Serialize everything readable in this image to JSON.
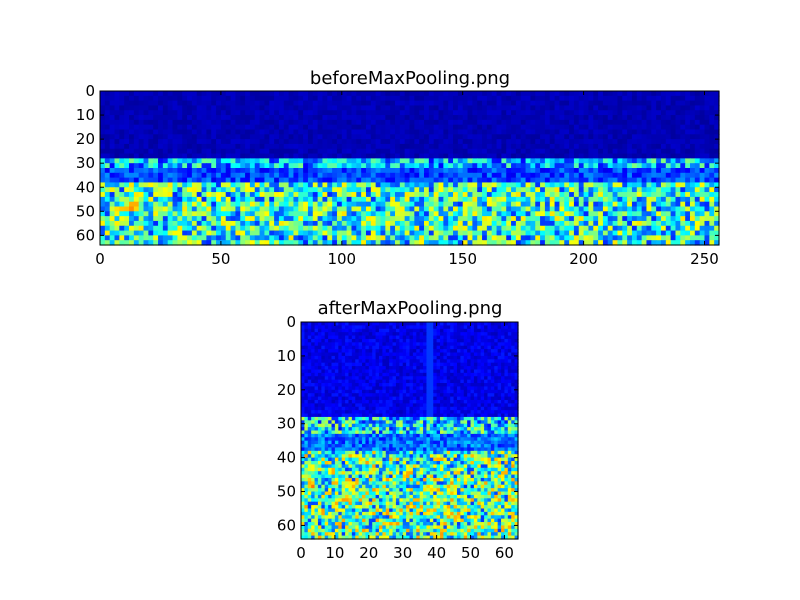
{
  "chart_data": [
    {
      "type": "heatmap",
      "title": "beforeMaxPooling.png",
      "xlabel": "",
      "ylabel": "",
      "x_range": [
        0,
        256
      ],
      "y_range": [
        0,
        64
      ],
      "y_inverted": true,
      "colormap": "jet",
      "xticks": [
        0,
        50,
        100,
        150,
        200,
        250
      ],
      "yticks": [
        0,
        10,
        20,
        30,
        40,
        50,
        60
      ],
      "grid": false,
      "summary_rows": [
        {
          "y_range": [
            0,
            28
          ],
          "level": 0.05
        },
        {
          "y_range": [
            28,
            33
          ],
          "level": 0.35
        },
        {
          "y_range": [
            33,
            38
          ],
          "level": 0.18
        },
        {
          "y_range": [
            38,
            64
          ],
          "level": 0.45
        }
      ],
      "hotspots": [
        {
          "x": 14,
          "y": 48,
          "level": 0.95
        },
        {
          "x": 10,
          "y": 49,
          "level": 0.85
        },
        {
          "x": 16,
          "y": 44,
          "level": 0.8
        },
        {
          "x": 27,
          "y": 49,
          "level": 0.7
        },
        {
          "x": 53,
          "y": 48,
          "level": 0.7
        },
        {
          "x": 68,
          "y": 49,
          "level": 0.65
        },
        {
          "x": 155,
          "y": 50,
          "level": 0.75
        },
        {
          "x": 185,
          "y": 58,
          "level": 0.6
        },
        {
          "x": 215,
          "y": 59,
          "level": 0.55
        }
      ]
    },
    {
      "type": "heatmap",
      "title": "afterMaxPooling.png",
      "xlabel": "",
      "ylabel": "",
      "x_range": [
        0,
        64
      ],
      "y_range": [
        0,
        64
      ],
      "y_inverted": true,
      "colormap": "jet",
      "xticks": [
        0,
        10,
        20,
        30,
        40,
        50,
        60
      ],
      "yticks": [
        0,
        10,
        20,
        30,
        40,
        50,
        60
      ],
      "grid": false,
      "summary_rows": [
        {
          "y_range": [
            0,
            28
          ],
          "level": 0.1
        },
        {
          "y_range": [
            28,
            33
          ],
          "level": 0.4
        },
        {
          "y_range": [
            33,
            38
          ],
          "level": 0.22
        },
        {
          "y_range": [
            38,
            64
          ],
          "level": 0.5
        }
      ],
      "hotspots": [
        {
          "x": 3,
          "y": 48,
          "level": 1.0
        },
        {
          "x": 3,
          "y": 43,
          "level": 0.9
        },
        {
          "x": 13,
          "y": 48,
          "level": 0.8
        },
        {
          "x": 38,
          "y": 49,
          "level": 0.8
        },
        {
          "x": 38,
          "y": 56,
          "level": 0.75
        },
        {
          "x": 45,
          "y": 57,
          "level": 0.7
        },
        {
          "x": 58,
          "y": 56,
          "level": 0.65
        }
      ]
    }
  ]
}
